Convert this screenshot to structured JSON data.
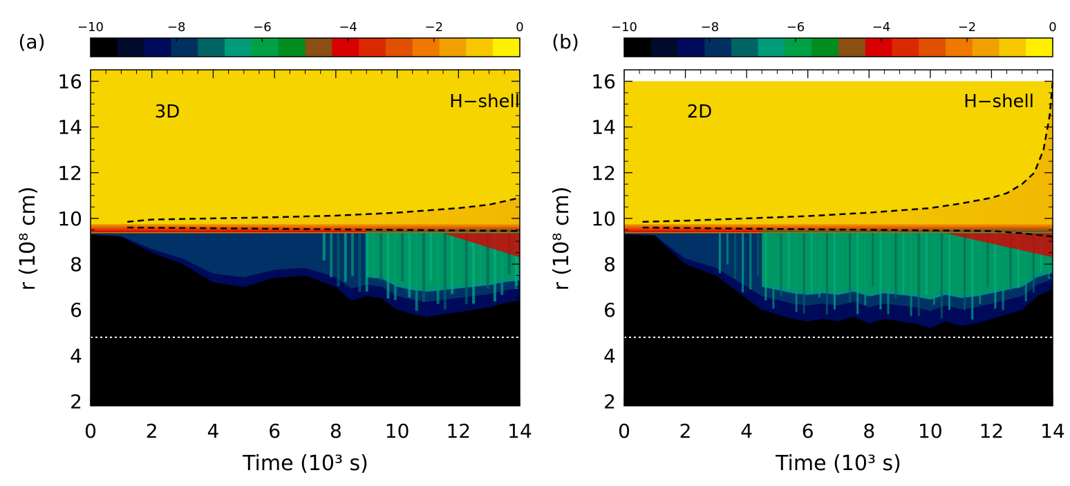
{
  "chart_data": [
    {
      "panel_label": "(a)",
      "type": "heatmap",
      "in_plot_labels": [
        "3D",
        "H−shell"
      ],
      "xlabel": "Time (10³ s)",
      "ylabel": "r (10⁸ cm)",
      "xlim": [
        0,
        14
      ],
      "ylim": [
        1.8,
        16.5
      ],
      "x_ticks": [
        "0",
        "2",
        "4",
        "6",
        "8",
        "10",
        "12",
        "14"
      ],
      "y_ticks": [
        "2",
        "4",
        "6",
        "8",
        "10",
        "12",
        "14",
        "16"
      ],
      "colorbar": {
        "range": [
          -10,
          0
        ],
        "ticks": [
          "−10",
          "−8",
          "−6",
          "−4",
          "−2",
          "0"
        ],
        "colors": [
          "#000000",
          "#000a2c",
          "#000a5a",
          "#003060",
          "#006464",
          "#009b78",
          "#00a046",
          "#008c1e",
          "#8b5014",
          "#d80000",
          "#dc2800",
          "#e05000",
          "#ee7800",
          "#f0a000",
          "#f7c800",
          "#fff000"
        ]
      },
      "background_value": -0.6,
      "upper_shell_level": -1.0,
      "interface_r": 9.5,
      "core_boundary_r": 4.8,
      "dashed_upper_boundary": {
        "t": [
          1.2,
          2,
          4,
          6,
          8,
          10,
          12,
          13,
          14
        ],
        "r": [
          9.85,
          9.95,
          10.0,
          10.05,
          10.12,
          10.25,
          10.45,
          10.6,
          10.9
        ]
      },
      "dashed_lower_boundary": {
        "t": [
          1.2,
          14
        ],
        "r": [
          9.6,
          9.45
        ]
      },
      "mixing_front": {
        "t": [
          0,
          1,
          2,
          3,
          4,
          5,
          6,
          7,
          8,
          8.5,
          9,
          9.5,
          10,
          10.5,
          11,
          11.5,
          12,
          12.5,
          13,
          13.5,
          14
        ],
        "r": [
          9.3,
          9.2,
          8.5,
          8.0,
          7.2,
          7.0,
          7.4,
          7.5,
          7.0,
          6.4,
          6.6,
          6.5,
          6.0,
          5.8,
          5.7,
          5.8,
          5.9,
          6.0,
          6.1,
          6.3,
          6.4
        ]
      }
    },
    {
      "panel_label": "(b)",
      "type": "heatmap",
      "in_plot_labels": [
        "2D",
        "H−shell"
      ],
      "xlabel": "Time (10³ s)",
      "ylabel": "r (10⁸ cm)",
      "xlim": [
        0,
        14
      ],
      "ylim": [
        1.8,
        16.5
      ],
      "x_ticks": [
        "0",
        "2",
        "4",
        "6",
        "8",
        "10",
        "12",
        "14"
      ],
      "y_ticks": [
        "2",
        "4",
        "6",
        "8",
        "10",
        "12",
        "14",
        "16"
      ],
      "colorbar": {
        "range": [
          -10,
          0
        ],
        "ticks": [
          "−10",
          "−8",
          "−6",
          "−4",
          "−2",
          "0"
        ],
        "colors": [
          "#000000",
          "#000a2c",
          "#000a5a",
          "#003060",
          "#006464",
          "#009b78",
          "#00a046",
          "#008c1e",
          "#8b5014",
          "#d80000",
          "#dc2800",
          "#e05000",
          "#ee7800",
          "#f0a000",
          "#f7c800",
          "#fff000"
        ]
      },
      "background_value": -0.6,
      "upper_shell_level": -1.0,
      "interface_r": 9.5,
      "core_boundary_r": 4.8,
      "domain_top_r": 16.0,
      "dashed_upper_boundary": {
        "t": [
          0.6,
          2,
          4,
          6,
          8,
          10,
          11,
          12,
          12.5,
          13,
          13.4,
          13.7,
          13.9,
          14
        ],
        "r": [
          9.85,
          9.9,
          10.0,
          10.1,
          10.25,
          10.45,
          10.65,
          10.9,
          11.1,
          11.5,
          12.0,
          13.0,
          14.5,
          16.0
        ]
      },
      "dashed_lower_boundary": {
        "t": [
          0.6,
          4,
          8,
          12,
          13,
          14
        ],
        "r": [
          9.6,
          9.55,
          9.5,
          9.45,
          9.35,
          9.2
        ]
      },
      "mixing_front": {
        "t": [
          0,
          1,
          1.5,
          2,
          3,
          4,
          4.5,
          5,
          5.5,
          6,
          6.5,
          7,
          7.5,
          8,
          8.5,
          9,
          9.5,
          10,
          10.5,
          11,
          11.5,
          12,
          12.5,
          13,
          13.5,
          14
        ],
        "r": [
          9.3,
          9.25,
          8.6,
          8.0,
          7.5,
          6.5,
          6.0,
          5.8,
          5.6,
          5.5,
          5.6,
          5.5,
          5.7,
          5.4,
          5.6,
          5.5,
          5.4,
          5.2,
          5.5,
          5.3,
          5.4,
          5.6,
          5.8,
          6.0,
          6.6,
          6.9
        ]
      }
    }
  ]
}
